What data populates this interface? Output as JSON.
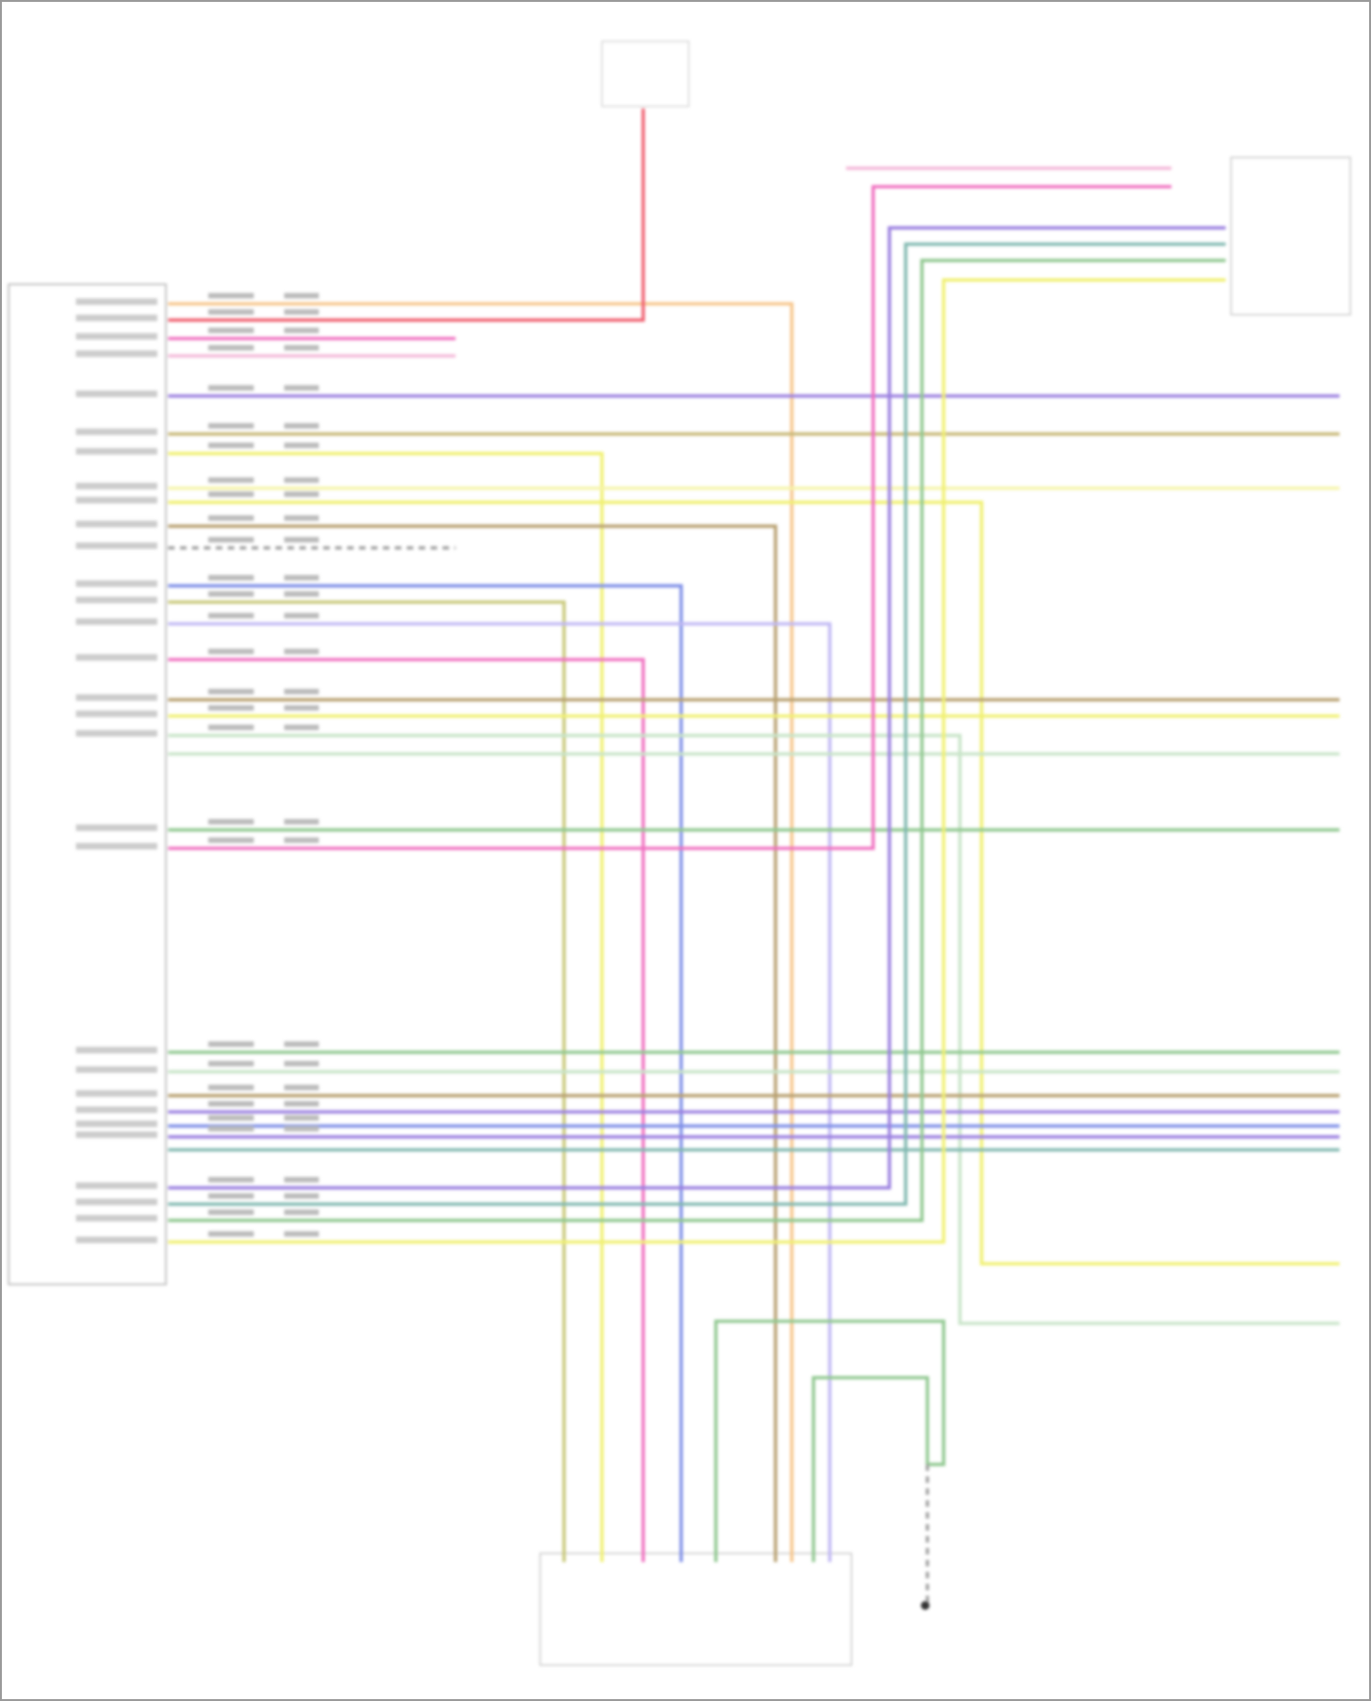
{
  "diagram": {
    "title": "",
    "wire_colors": {
      "orange": "#f7c58a",
      "red": "#f06070",
      "pink": "#f070c0",
      "light_pink": "#f4b8d8",
      "purple": "#9a7fe0",
      "tan": "#c8b878",
      "yellow": "#f0f070",
      "light_yellow": "#f6f4a8",
      "brown": "#b8a070",
      "gray": "#a0a0a0",
      "blue": "#7f90e8",
      "olive": "#c8c878",
      "lavender": "#c0b8f4",
      "green": "#90c890",
      "light_green": "#c8e4c8",
      "teal": "#80b8b0"
    },
    "components": [
      "module-left",
      "fuse-top",
      "connector-top-right",
      "connector-bottom",
      "ground-bottom-right"
    ]
  }
}
